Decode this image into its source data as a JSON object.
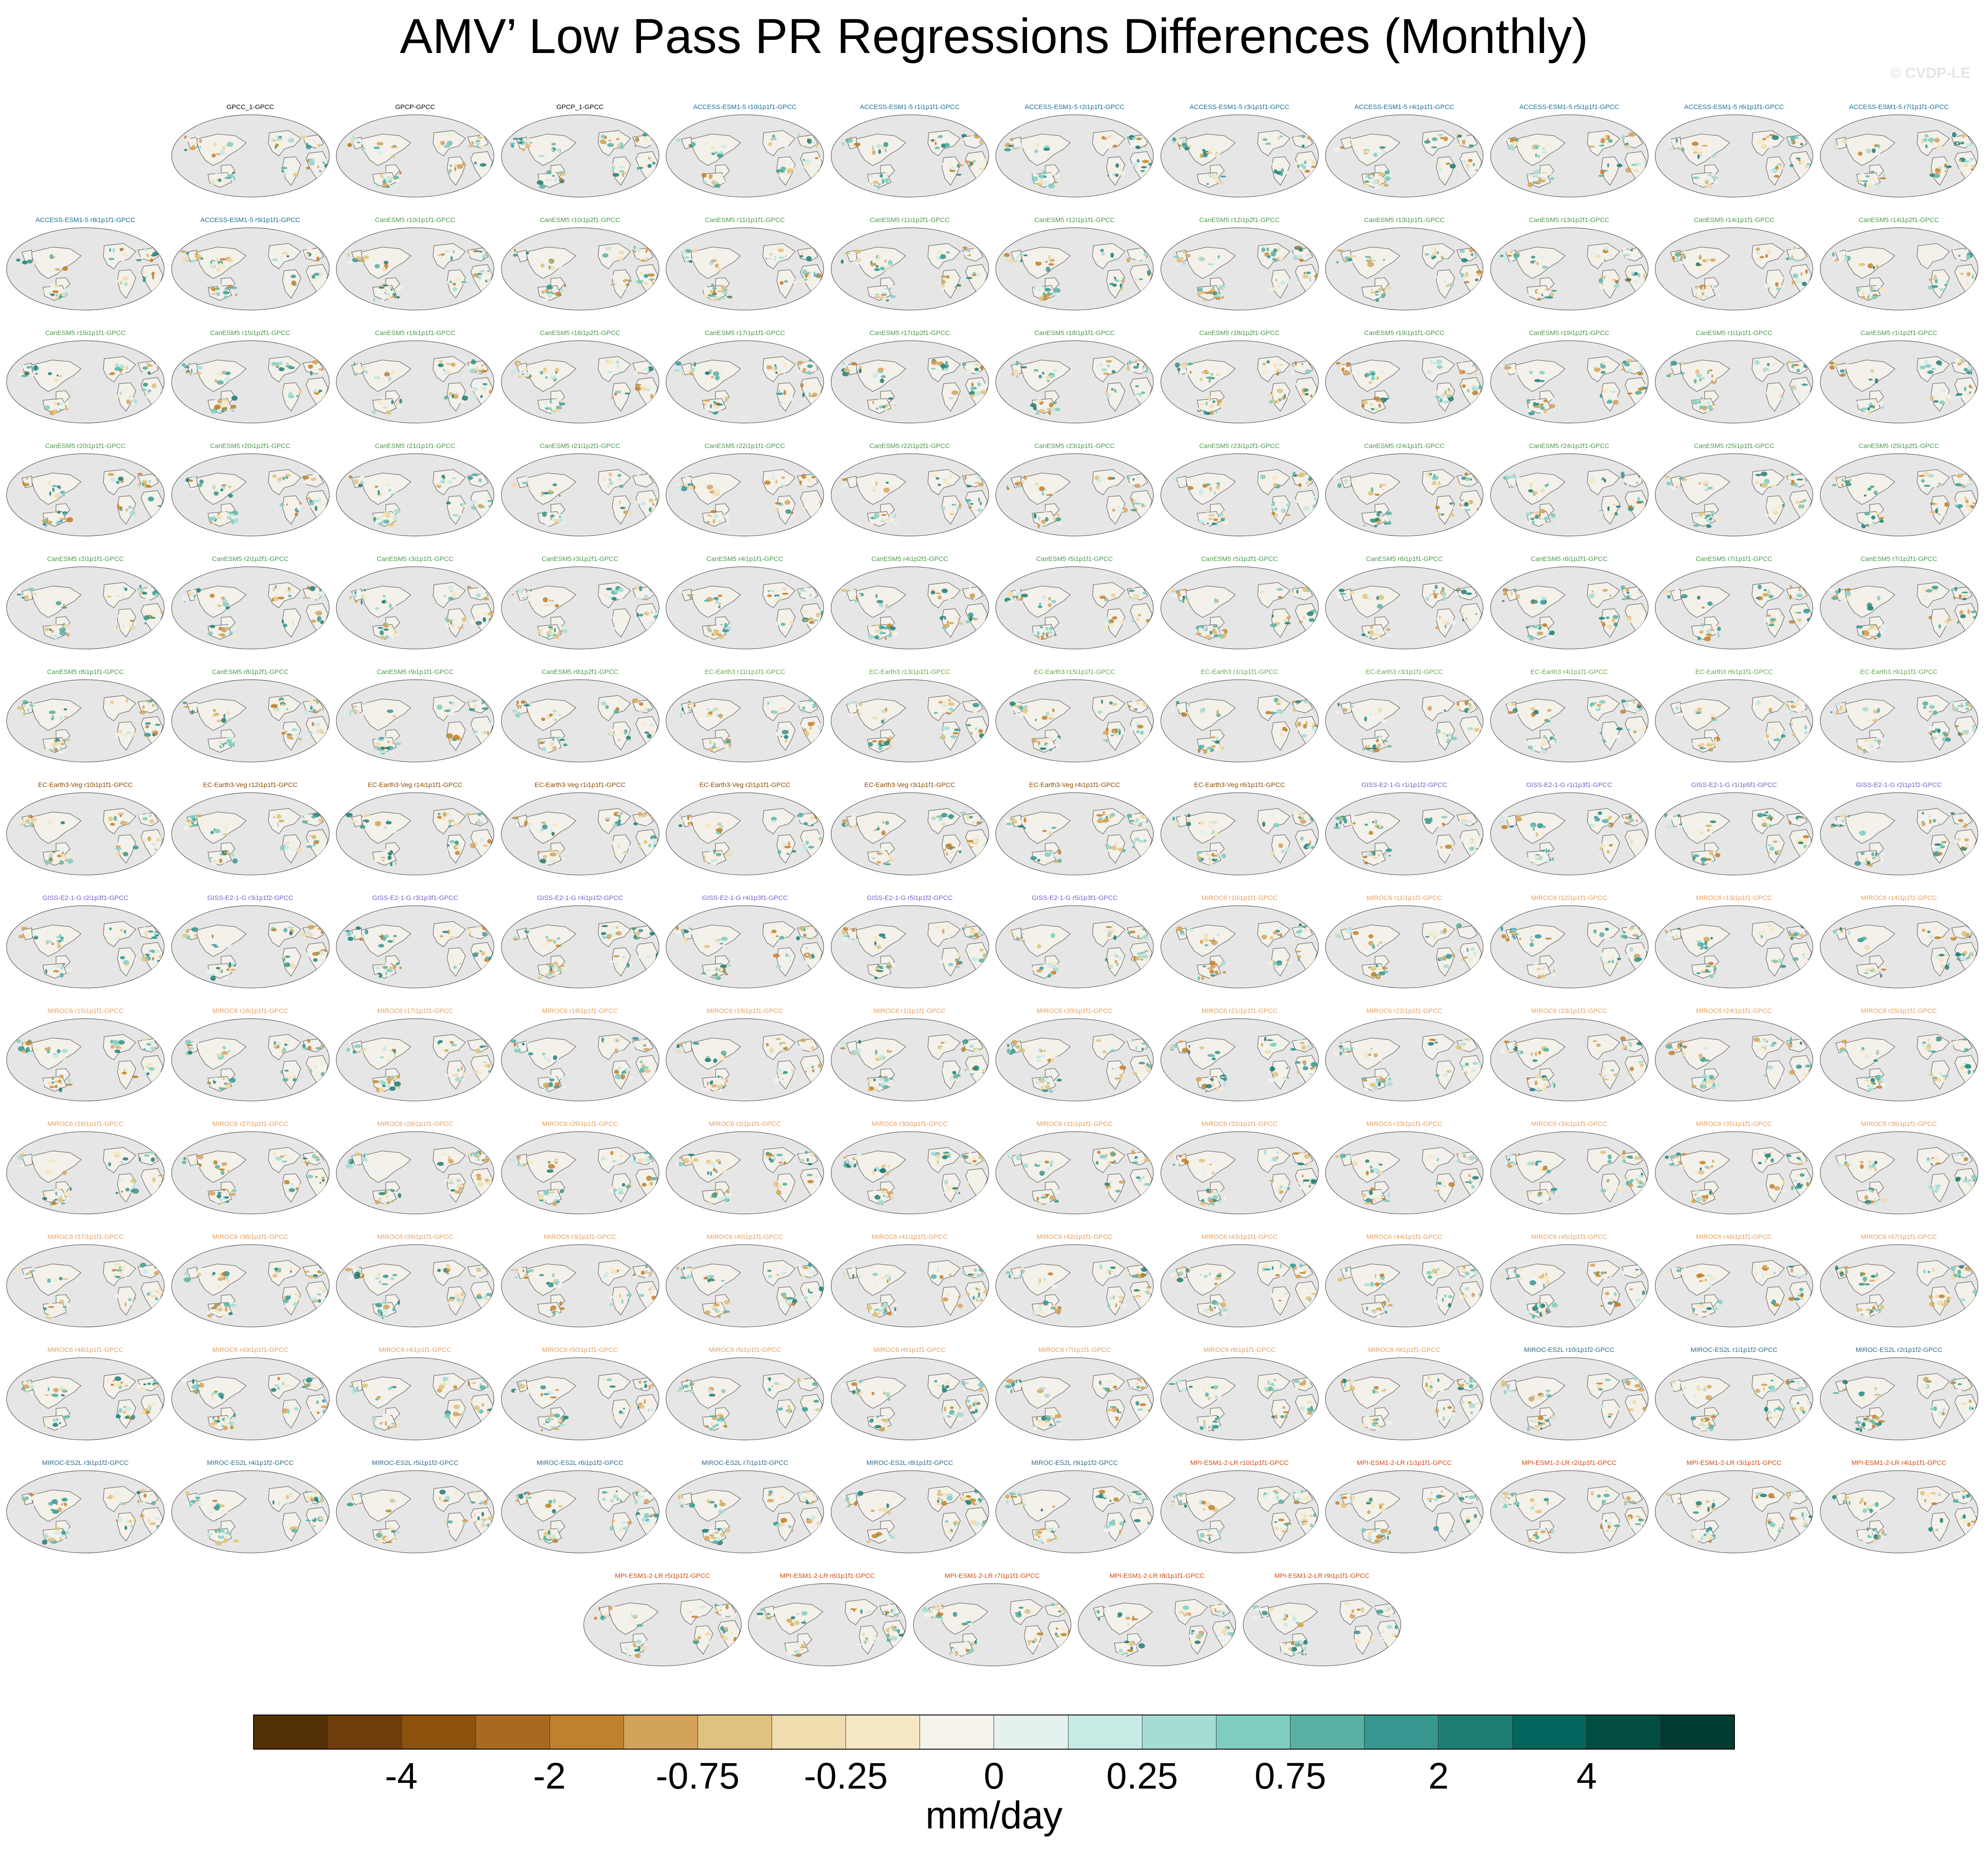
{
  "title": "AMV’ Low Pass PR Regressions Differences (Monthly)",
  "watermark": "© CVDP-LE",
  "units": "mm/day",
  "colorbar": {
    "colors": [
      "#543005",
      "#6f3c0b",
      "#8c510a",
      "#a96a20",
      "#bf812d",
      "#d3a35a",
      "#dfc27d",
      "#efdcaf",
      "#f6e8c3",
      "#f5f2ec",
      "#e5f1ee",
      "#c7eae5",
      "#a7dcd3",
      "#80cdc1",
      "#58b1a3",
      "#35978f",
      "#1d7e75",
      "#01665e",
      "#014d41",
      "#003c30"
    ],
    "tick_labels": [
      "-4",
      "-2",
      "-0.75",
      "-0.25",
      "0",
      "0.25",
      "0.75",
      "2",
      "4"
    ],
    "tick_box_boundaries": [
      2,
      4,
      6,
      8,
      10,
      12,
      14,
      16,
      18
    ]
  },
  "map_colors": {
    "ocean": "#e6e6e6",
    "land": "#f4f1ea",
    "coast": "#6b6b6b",
    "pos": "#35978f",
    "neg": "#bf812d"
  },
  "model_colors": {
    "obs": "#000000",
    "ACCESS-ESM1-5": "#1a6e8e",
    "CanESM5": "#4a9a4a",
    "EC-Earth3": "#6aa84f",
    "EC-Earth3-Veg": "#8b4a00",
    "GISS-E2-1-G": "#7b5cc4",
    "MIROC6": "#e6a060",
    "MIROC-ES2L": "#2d6a8a",
    "MPI-ESM1-2-LR": "#d04a10"
  },
  "rows": [
    [
      {
        "label": "GPCC_1-GPCC",
        "model": "obs",
        "col": 1
      },
      {
        "label": "GPCP-GPCC",
        "model": "obs",
        "col": 2
      },
      {
        "label": "GPCP_1-GPCC",
        "model": "obs",
        "col": 3
      },
      {
        "label": "ACCESS-ESM1-5 r10i1p1f1-GPCC",
        "model": "ACCESS-ESM1-5",
        "col": 4
      },
      {
        "label": "ACCESS-ESM1-5 r1i1p1f1-GPCC",
        "model": "ACCESS-ESM1-5",
        "col": 5
      },
      {
        "label": "ACCESS-ESM1-5 r2i1p1f1-GPCC",
        "model": "ACCESS-ESM1-5",
        "col": 6
      },
      {
        "label": "ACCESS-ESM1-5 r3i1p1f1-GPCC",
        "model": "ACCESS-ESM1-5",
        "col": 7
      },
      {
        "label": "ACCESS-ESM1-5 r4i1p1f1-GPCC",
        "model": "ACCESS-ESM1-5",
        "col": 8
      },
      {
        "label": "ACCESS-ESM1-5 r5i1p1f1-GPCC",
        "model": "ACCESS-ESM1-5",
        "col": 9
      },
      {
        "label": "ACCESS-ESM1-5 r6i1p1f1-GPCC",
        "model": "ACCESS-ESM1-5",
        "col": 10
      },
      {
        "label": "ACCESS-ESM1-5 r7i1p1f1-GPCC",
        "model": "ACCESS-ESM1-5",
        "col": 11
      }
    ],
    [
      {
        "label": "ACCESS-ESM1-5 r8i1p1f1-GPCC",
        "model": "ACCESS-ESM1-5",
        "col": 0
      },
      {
        "label": "ACCESS-ESM1-5 r9i1p1f1-GPCC",
        "model": "ACCESS-ESM1-5",
        "col": 1
      },
      {
        "label": "CanESM5 r10i1p1f1-GPCC",
        "model": "CanESM5",
        "col": 2
      },
      {
        "label": "CanESM5 r10i1p2f1-GPCC",
        "model": "CanESM5",
        "col": 3
      },
      {
        "label": "CanESM5 r11i1p1f1-GPCC",
        "model": "CanESM5",
        "col": 4
      },
      {
        "label": "CanESM5 r11i1p2f1-GPCC",
        "model": "CanESM5",
        "col": 5
      },
      {
        "label": "CanESM5 r12i1p1f1-GPCC",
        "model": "CanESM5",
        "col": 6
      },
      {
        "label": "CanESM5 r12i1p2f1-GPCC",
        "model": "CanESM5",
        "col": 7
      },
      {
        "label": "CanESM5 r13i1p1f1-GPCC",
        "model": "CanESM5",
        "col": 8
      },
      {
        "label": "CanESM5 r13i1p2f1-GPCC",
        "model": "CanESM5",
        "col": 9
      },
      {
        "label": "CanESM5 r14i1p1f1-GPCC",
        "model": "CanESM5",
        "col": 10
      },
      {
        "label": "CanESM5 r14i1p2f1-GPCC",
        "model": "CanESM5",
        "col": 11
      }
    ],
    [
      {
        "label": "CanESM5 r15i1p1f1-GPCC",
        "model": "CanESM5",
        "col": 0
      },
      {
        "label": "CanESM5 r15i1p2f1-GPCC",
        "model": "CanESM5",
        "col": 1
      },
      {
        "label": "CanESM5 r16i1p1f1-GPCC",
        "model": "CanESM5",
        "col": 2
      },
      {
        "label": "CanESM5 r16i1p2f1-GPCC",
        "model": "CanESM5",
        "col": 3
      },
      {
        "label": "CanESM5 r17i1p1f1-GPCC",
        "model": "CanESM5",
        "col": 4
      },
      {
        "label": "CanESM5 r17i1p2f1-GPCC",
        "model": "CanESM5",
        "col": 5
      },
      {
        "label": "CanESM5 r18i1p1f1-GPCC",
        "model": "CanESM5",
        "col": 6
      },
      {
        "label": "CanESM5 r18i1p2f1-GPCC",
        "model": "CanESM5",
        "col": 7
      },
      {
        "label": "CanESM5 r19i1p1f1-GPCC",
        "model": "CanESM5",
        "col": 8
      },
      {
        "label": "CanESM5 r19i1p2f1-GPCC",
        "model": "CanESM5",
        "col": 9
      },
      {
        "label": "CanESM5 r1i1p1f1-GPCC",
        "model": "CanESM5",
        "col": 10
      },
      {
        "label": "CanESM5 r1i1p2f1-GPCC",
        "model": "CanESM5",
        "col": 11
      }
    ],
    [
      {
        "label": "CanESM5 r20i1p1f1-GPCC",
        "model": "CanESM5",
        "col": 0
      },
      {
        "label": "CanESM5 r20i1p2f1-GPCC",
        "model": "CanESM5",
        "col": 1
      },
      {
        "label": "CanESM5 r21i1p1f1-GPCC",
        "model": "CanESM5",
        "col": 2
      },
      {
        "label": "CanESM5 r21i1p2f1-GPCC",
        "model": "CanESM5",
        "col": 3
      },
      {
        "label": "CanESM5 r22i1p1f1-GPCC",
        "model": "CanESM5",
        "col": 4
      },
      {
        "label": "CanESM5 r22i1p2f1-GPCC",
        "model": "CanESM5",
        "col": 5
      },
      {
        "label": "CanESM5 r23i1p1f1-GPCC",
        "model": "CanESM5",
        "col": 6
      },
      {
        "label": "CanESM5 r23i1p2f1-GPCC",
        "model": "CanESM5",
        "col": 7
      },
      {
        "label": "CanESM5 r24i1p1f1-GPCC",
        "model": "CanESM5",
        "col": 8
      },
      {
        "label": "CanESM5 r24i1p2f1-GPCC",
        "model": "CanESM5",
        "col": 9
      },
      {
        "label": "CanESM5 r25i1p1f1-GPCC",
        "model": "CanESM5",
        "col": 10
      },
      {
        "label": "CanESM5 r25i1p2f1-GPCC",
        "model": "CanESM5",
        "col": 11
      }
    ],
    [
      {
        "label": "CanESM5 r2i1p1f1-GPCC",
        "model": "CanESM5",
        "col": 0
      },
      {
        "label": "CanESM5 r2i1p2f1-GPCC",
        "model": "CanESM5",
        "col": 1
      },
      {
        "label": "CanESM5 r3i1p1f1-GPCC",
        "model": "CanESM5",
        "col": 2
      },
      {
        "label": "CanESM5 r3i1p2f1-GPCC",
        "model": "CanESM5",
        "col": 3
      },
      {
        "label": "CanESM5 r4i1p1f1-GPCC",
        "model": "CanESM5",
        "col": 4
      },
      {
        "label": "CanESM5 r4i1p2f1-GPCC",
        "model": "CanESM5",
        "col": 5
      },
      {
        "label": "CanESM5 r5i1p1f1-GPCC",
        "model": "CanESM5",
        "col": 6
      },
      {
        "label": "CanESM5 r5i1p2f1-GPCC",
        "model": "CanESM5",
        "col": 7
      },
      {
        "label": "CanESM5 r6i1p1f1-GPCC",
        "model": "CanESM5",
        "col": 8
      },
      {
        "label": "CanESM5 r6i1p2f1-GPCC",
        "model": "CanESM5",
        "col": 9
      },
      {
        "label": "CanESM5 r7i1p1f1-GPCC",
        "model": "CanESM5",
        "col": 10
      },
      {
        "label": "CanESM5 r7i1p2f1-GPCC",
        "model": "CanESM5",
        "col": 11
      }
    ],
    [
      {
        "label": "CanESM5 r8i1p1f1-GPCC",
        "model": "CanESM5",
        "col": 0
      },
      {
        "label": "CanESM5 r8i1p2f1-GPCC",
        "model": "CanESM5",
        "col": 1
      },
      {
        "label": "CanESM5 r9i1p1f1-GPCC",
        "model": "CanESM5",
        "col": 2
      },
      {
        "label": "CanESM5 r9i1p2f1-GPCC",
        "model": "CanESM5",
        "col": 3
      },
      {
        "label": "EC-Earth3 r11i1p1f1-GPCC",
        "model": "EC-Earth3",
        "col": 4
      },
      {
        "label": "EC-Earth3 r13i1p1f1-GPCC",
        "model": "EC-Earth3",
        "col": 5
      },
      {
        "label": "EC-Earth3 r15i1p1f1-GPCC",
        "model": "EC-Earth3",
        "col": 6
      },
      {
        "label": "EC-Earth3 r1i1p1f1-GPCC",
        "model": "EC-Earth3",
        "col": 7
      },
      {
        "label": "EC-Earth3 r3i1p1f1-GPCC",
        "model": "EC-Earth3",
        "col": 8
      },
      {
        "label": "EC-Earth3 r4i1p1f1-GPCC",
        "model": "EC-Earth3",
        "col": 9
      },
      {
        "label": "EC-Earth3 r6i1p1f1-GPCC",
        "model": "EC-Earth3",
        "col": 10
      },
      {
        "label": "EC-Earth3 r9i1p1f1-GPCC",
        "model": "EC-Earth3",
        "col": 11
      }
    ],
    [
      {
        "label": "EC-Earth3-Veg r10i1p1f1-GPCC",
        "model": "EC-Earth3-Veg",
        "col": 0
      },
      {
        "label": "EC-Earth3-Veg r12i1p1f1-GPCC",
        "model": "EC-Earth3-Veg",
        "col": 1
      },
      {
        "label": "EC-Earth3-Veg r14i1p1f1-GPCC",
        "model": "EC-Earth3-Veg",
        "col": 2
      },
      {
        "label": "EC-Earth3-Veg r1i1p1f1-GPCC",
        "model": "EC-Earth3-Veg",
        "col": 3
      },
      {
        "label": "EC-Earth3-Veg r2i1p1f1-GPCC",
        "model": "EC-Earth3-Veg",
        "col": 4
      },
      {
        "label": "EC-Earth3-Veg r3i1p1f1-GPCC",
        "model": "EC-Earth3-Veg",
        "col": 5
      },
      {
        "label": "EC-Earth3-Veg r4i1p1f1-GPCC",
        "model": "EC-Earth3-Veg",
        "col": 6
      },
      {
        "label": "EC-Earth3-Veg r6i1p1f1-GPCC",
        "model": "EC-Earth3-Veg",
        "col": 7
      },
      {
        "label": "GISS-E2-1-G r1i1p1f2-GPCC",
        "model": "GISS-E2-1-G",
        "col": 8
      },
      {
        "label": "GISS-E2-1-G r1i1p3f1-GPCC",
        "model": "GISS-E2-1-G",
        "col": 9
      },
      {
        "label": "GISS-E2-1-G r1i1p5f1-GPCC",
        "model": "GISS-E2-1-G",
        "col": 10
      },
      {
        "label": "GISS-E2-1-G r2i1p1f2-GPCC",
        "model": "GISS-E2-1-G",
        "col": 11
      }
    ],
    [
      {
        "label": "GISS-E2-1-G r2i1p3f1-GPCC",
        "model": "GISS-E2-1-G",
        "col": 0
      },
      {
        "label": "GISS-E2-1-G r3i1p1f2-GPCC",
        "model": "GISS-E2-1-G",
        "col": 1
      },
      {
        "label": "GISS-E2-1-G r3i1p3f1-GPCC",
        "model": "GISS-E2-1-G",
        "col": 2
      },
      {
        "label": "GISS-E2-1-G r4i1p1f2-GPCC",
        "model": "GISS-E2-1-G",
        "col": 3
      },
      {
        "label": "GISS-E2-1-G r4i1p3f1-GPCC",
        "model": "GISS-E2-1-G",
        "col": 4
      },
      {
        "label": "GISS-E2-1-G r5i1p1f2-GPCC",
        "model": "GISS-E2-1-G",
        "col": 5
      },
      {
        "label": "GISS-E2-1-G r5i1p3f1-GPCC",
        "model": "GISS-E2-1-G",
        "col": 6
      },
      {
        "label": "MIROC6 r10i1p1f1-GPCC",
        "model": "MIROC6",
        "col": 7
      },
      {
        "label": "MIROC6 r11i1p1f1-GPCC",
        "model": "MIROC6",
        "col": 8
      },
      {
        "label": "MIROC6 r12i1p1f1-GPCC",
        "model": "MIROC6",
        "col": 9
      },
      {
        "label": "MIROC6 r13i1p1f1-GPCC",
        "model": "MIROC6",
        "col": 10
      },
      {
        "label": "MIROC6 r14i1p1f1-GPCC",
        "model": "MIROC6",
        "col": 11
      }
    ],
    [
      {
        "label": "MIROC6 r15i1p1f1-GPCC",
        "model": "MIROC6",
        "col": 0
      },
      {
        "label": "MIROC6 r16i1p1f1-GPCC",
        "model": "MIROC6",
        "col": 1
      },
      {
        "label": "MIROC6 r17i1p1f1-GPCC",
        "model": "MIROC6",
        "col": 2
      },
      {
        "label": "MIROC6 r18i1p1f1-GPCC",
        "model": "MIROC6",
        "col": 3
      },
      {
        "label": "MIROC6 r19i1p1f1-GPCC",
        "model": "MIROC6",
        "col": 4
      },
      {
        "label": "MIROC6 r1i1p1f1-GPCC",
        "model": "MIROC6",
        "col": 5
      },
      {
        "label": "MIROC6 r20i1p1f1-GPCC",
        "model": "MIROC6",
        "col": 6
      },
      {
        "label": "MIROC6 r21i1p1f1-GPCC",
        "model": "MIROC6",
        "col": 7
      },
      {
        "label": "MIROC6 r22i1p1f1-GPCC",
        "model": "MIROC6",
        "col": 8
      },
      {
        "label": "MIROC6 r23i1p1f1-GPCC",
        "model": "MIROC6",
        "col": 9
      },
      {
        "label": "MIROC6 r24i1p1f1-GPCC",
        "model": "MIROC6",
        "col": 10
      },
      {
        "label": "MIROC6 r25i1p1f1-GPCC",
        "model": "MIROC6",
        "col": 11
      }
    ],
    [
      {
        "label": "MIROC6 r26i1p1f1-GPCC",
        "model": "MIROC6",
        "col": 0
      },
      {
        "label": "MIROC6 r27i1p1f1-GPCC",
        "model": "MIROC6",
        "col": 1
      },
      {
        "label": "MIROC6 r28i1p1f1-GPCC",
        "model": "MIROC6",
        "col": 2
      },
      {
        "label": "MIROC6 r29i1p1f1-GPCC",
        "model": "MIROC6",
        "col": 3
      },
      {
        "label": "MIROC6 r2i1p1f1-GPCC",
        "model": "MIROC6",
        "col": 4
      },
      {
        "label": "MIROC6 r30i1p1f1-GPCC",
        "model": "MIROC6",
        "col": 5
      },
      {
        "label": "MIROC6 r31i1p1f1-GPCC",
        "model": "MIROC6",
        "col": 6
      },
      {
        "label": "MIROC6 r32i1p1f1-GPCC",
        "model": "MIROC6",
        "col": 7
      },
      {
        "label": "MIROC6 r33i1p1f1-GPCC",
        "model": "MIROC6",
        "col": 8
      },
      {
        "label": "MIROC6 r34i1p1f1-GPCC",
        "model": "MIROC6",
        "col": 9
      },
      {
        "label": "MIROC6 r35i1p1f1-GPCC",
        "model": "MIROC6",
        "col": 10
      },
      {
        "label": "MIROC6 r36i1p1f1-GPCC",
        "model": "MIROC6",
        "col": 11
      }
    ],
    [
      {
        "label": "MIROC6 r37i1p1f1-GPCC",
        "model": "MIROC6",
        "col": 0
      },
      {
        "label": "MIROC6 r38i1p1f1-GPCC",
        "model": "MIROC6",
        "col": 1
      },
      {
        "label": "MIROC6 r39i1p1f1-GPCC",
        "model": "MIROC6",
        "col": 2
      },
      {
        "label": "MIROC6 r3i1p1f1-GPCC",
        "model": "MIROC6",
        "col": 3
      },
      {
        "label": "MIROC6 r40i1p1f1-GPCC",
        "model": "MIROC6",
        "col": 4
      },
      {
        "label": "MIROC6 r41i1p1f1-GPCC",
        "model": "MIROC6",
        "col": 5
      },
      {
        "label": "MIROC6 r42i1p1f1-GPCC",
        "model": "MIROC6",
        "col": 6
      },
      {
        "label": "MIROC6 r43i1p1f1-GPCC",
        "model": "MIROC6",
        "col": 7
      },
      {
        "label": "MIROC6 r44i1p1f1-GPCC",
        "model": "MIROC6",
        "col": 8
      },
      {
        "label": "MIROC6 r45i1p1f1-GPCC",
        "model": "MIROC6",
        "col": 9
      },
      {
        "label": "MIROC6 r46i1p1f1-GPCC",
        "model": "MIROC6",
        "col": 10
      },
      {
        "label": "MIROC6 r47i1p1f1-GPCC",
        "model": "MIROC6",
        "col": 11
      }
    ],
    [
      {
        "label": "MIROC6 r48i1p1f1-GPCC",
        "model": "MIROC6",
        "col": 0
      },
      {
        "label": "MIROC6 r49i1p1f1-GPCC",
        "model": "MIROC6",
        "col": 1
      },
      {
        "label": "MIROC6 r4i1p1f1-GPCC",
        "model": "MIROC6",
        "col": 2
      },
      {
        "label": "MIROC6 r50i1p1f1-GPCC",
        "model": "MIROC6",
        "col": 3
      },
      {
        "label": "MIROC6 r5i1p1f1-GPCC",
        "model": "MIROC6",
        "col": 4
      },
      {
        "label": "MIROC6 r6i1p1f1-GPCC",
        "model": "MIROC6",
        "col": 5
      },
      {
        "label": "MIROC6 r7i1p1f1-GPCC",
        "model": "MIROC6",
        "col": 6
      },
      {
        "label": "MIROC6 r8i1p1f1-GPCC",
        "model": "MIROC6",
        "col": 7
      },
      {
        "label": "MIROC6 r9i1p1f1-GPCC",
        "model": "MIROC6",
        "col": 8
      },
      {
        "label": "MIROC-ES2L r10i1p1f2-GPCC",
        "model": "MIROC-ES2L",
        "col": 9
      },
      {
        "label": "MIROC-ES2L r1i1p1f2-GPCC",
        "model": "MIROC-ES2L",
        "col": 10
      },
      {
        "label": "MIROC-ES2L r2i1p1f2-GPCC",
        "model": "MIROC-ES2L",
        "col": 11
      }
    ],
    [
      {
        "label": "MIROC-ES2L r3i1p1f2-GPCC",
        "model": "MIROC-ES2L",
        "col": 0
      },
      {
        "label": "MIROC-ES2L r4i1p1f2-GPCC",
        "model": "MIROC-ES2L",
        "col": 1
      },
      {
        "label": "MIROC-ES2L r5i1p1f2-GPCC",
        "model": "MIROC-ES2L",
        "col": 2
      },
      {
        "label": "MIROC-ES2L r6i1p1f2-GPCC",
        "model": "MIROC-ES2L",
        "col": 3
      },
      {
        "label": "MIROC-ES2L r7i1p1f2-GPCC",
        "model": "MIROC-ES2L",
        "col": 4
      },
      {
        "label": "MIROC-ES2L r8i1p1f2-GPCC",
        "model": "MIROC-ES2L",
        "col": 5
      },
      {
        "label": "MIROC-ES2L r9i1p1f2-GPCC",
        "model": "MIROC-ES2L",
        "col": 6
      },
      {
        "label": "MPI-ESM1-2-LR r10i1p1f1-GPCC",
        "model": "MPI-ESM1-2-LR",
        "col": 7
      },
      {
        "label": "MPI-ESM1-2-LR r1i1p1f1-GPCC",
        "model": "MPI-ESM1-2-LR",
        "col": 8
      },
      {
        "label": "MPI-ESM1-2-LR r2i1p1f1-GPCC",
        "model": "MPI-ESM1-2-LR",
        "col": 9
      },
      {
        "label": "MPI-ESM1-2-LR r3i1p1f1-GPCC",
        "model": "MPI-ESM1-2-LR",
        "col": 10
      },
      {
        "label": "MPI-ESM1-2-LR r4i1p1f1-GPCC",
        "model": "MPI-ESM1-2-LR",
        "col": 11
      }
    ],
    [
      {
        "label": "MPI-ESM1-2-LR r5i1p1f1-GPCC",
        "model": "MPI-ESM1-2-LR",
        "col": 3.5
      },
      {
        "label": "MPI-ESM1-2-LR r6i1p1f1-GPCC",
        "model": "MPI-ESM1-2-LR",
        "col": 4.5
      },
      {
        "label": "MPI-ESM1-2-LR r7i1p1f1-GPCC",
        "model": "MPI-ESM1-2-LR",
        "col": 5.5
      },
      {
        "label": "MPI-ESM1-2-LR r8i1p1f1-GPCC",
        "model": "MPI-ESM1-2-LR",
        "col": 6.5
      },
      {
        "label": "MPI-ESM1-2-LR r9i1p1f1-GPCC",
        "model": "MPI-ESM1-2-LR",
        "col": 7.5
      }
    ]
  ]
}
